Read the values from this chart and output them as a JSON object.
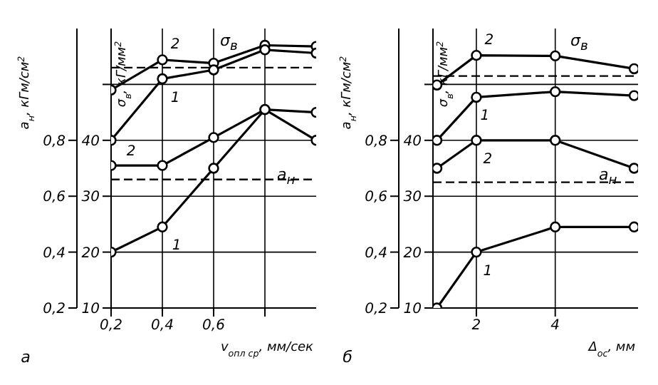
{
  "chart_data": [
    {
      "type": "line",
      "x": [
        0.2,
        0.4,
        0.6,
        0.8,
        1.0
      ],
      "xlabel": "v$_{опл ср}$, мм/сек",
      "ylabel": "σ$_{в}$, кГ/мм$^{2}$",
      "y2label": "a$_{н}$, кГм/см$^{2}$",
      "xlim": [
        0.2,
        1.0
      ],
      "xticks": [
        {
          "value": 0.2,
          "label": "0,2"
        },
        {
          "value": 0.4,
          "label": "0,4"
        },
        {
          "value": 0.6,
          "label": "0,6"
        },
        {
          "value": 0.8,
          "label": null
        }
      ],
      "ylim": [
        10,
        60
      ],
      "yticks": [
        10,
        20,
        30,
        40,
        {
          "value": 50,
          "label": null
        }
      ],
      "y2lim": [
        0.2,
        1.2
      ],
      "y2ticks": [
        {
          "value": 0.2,
          "label": "0,2"
        },
        {
          "value": 0.4,
          "label": "0,4"
        },
        {
          "value": 0.6,
          "label": "0,6"
        },
        {
          "value": 0.8,
          "label": "0,8"
        }
      ],
      "grid": true,
      "marker": "circle",
      "series": [
        {
          "name": "2",
          "color": "#000000",
          "values": [
            49,
            54.4,
            53.8,
            57,
            56.8
          ]
        },
        {
          "name": "1",
          "color": "#000000",
          "values": [
            40,
            51,
            52.6,
            56.2,
            55.6
          ]
        },
        {
          "name": "2",
          "color": "#000000",
          "axis": "y2",
          "values": [
            0.71,
            0.71,
            0.81,
            0.91,
            0.8
          ]
        },
        {
          "name": "1",
          "color": "#000000",
          "axis": "y2",
          "values": [
            0.4,
            0.49,
            0.7,
            0.91,
            0.9
          ]
        }
      ],
      "ref_lines": [
        {
          "axis": "y",
          "value": 53,
          "color": "#000000",
          "line_style": "dashed"
        },
        {
          "axis": "y",
          "value": 33,
          "color": "#000000",
          "line_style": "dashed"
        }
      ],
      "annotations": [
        "σ$_{в}$",
        "a$_{н}$",
        "а"
      ]
    },
    {
      "type": "line",
      "x": [
        1,
        2,
        4,
        6
      ],
      "xlabel": "Δ$_{ос}$, мм",
      "ylabel": "σ$_{в}$, кГ/мм$^{2}$",
      "y2label": "a$_{н}$, кГм/см$^{2}$",
      "xlim": [
        0.9,
        6.1
      ],
      "xticks": [
        2,
        4
      ],
      "ylim": [
        10,
        60
      ],
      "yticks": [
        10,
        20,
        30,
        40,
        {
          "value": 50,
          "label": null
        }
      ],
      "y2lim": [
        0.2,
        1.2
      ],
      "y2ticks": [
        {
          "value": 0.2,
          "label": "0,2"
        },
        {
          "value": 0.4,
          "label": "0,4"
        },
        {
          "value": 0.6,
          "label": "0,6"
        },
        {
          "value": 0.8,
          "label": "0,8"
        }
      ],
      "grid": true,
      "marker": "circle",
      "series": [
        {
          "name": "2",
          "color": "#000000",
          "values": [
            49.9,
            55.2,
            55.1,
            52.8
          ]
        },
        {
          "name": "1",
          "color": "#000000",
          "values": [
            40,
            47.7,
            48.7,
            48
          ]
        },
        {
          "name": "2",
          "color": "#000000",
          "axis": "y2",
          "values": [
            0.7,
            0.8,
            0.8,
            0.7
          ]
        },
        {
          "name": "1",
          "color": "#000000",
          "axis": "y2",
          "values": [
            0.2,
            0.4,
            0.49,
            0.49
          ]
        }
      ],
      "ref_lines": [
        {
          "axis": "y",
          "value": 51.5,
          "color": "#000000",
          "line_style": "dashed"
        },
        {
          "axis": "y",
          "value": 32.5,
          "color": "#000000",
          "line_style": "dashed"
        }
      ],
      "annotations": [
        "σ$_{в}$",
        "a$_{н}$",
        "б"
      ]
    }
  ]
}
